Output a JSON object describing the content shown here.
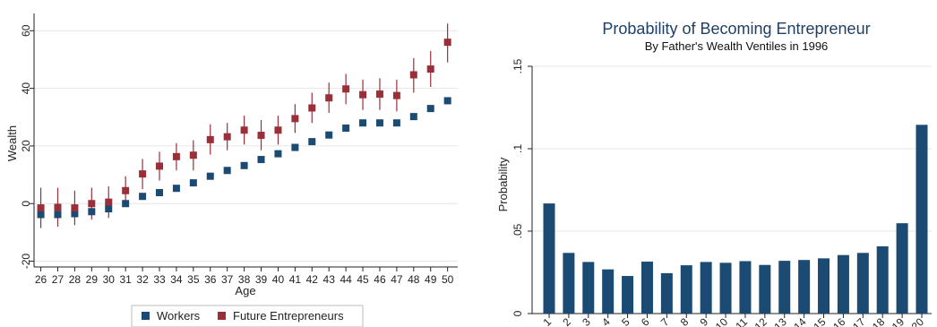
{
  "colors": {
    "workers": "#1b4a73",
    "entrepreneurs": "#9a2f3a",
    "bar": "#1b4a73",
    "grid": "#e6e6e6",
    "axis": "#222222"
  },
  "chart_data": [
    {
      "type": "scatter",
      "title": "",
      "xlabel": "Age",
      "ylabel": "Wealth",
      "xlim": [
        25.6,
        50.6
      ],
      "ylim": [
        -22,
        66
      ],
      "yticks": [
        -20,
        0,
        20,
        40,
        60
      ],
      "xticks": [
        26,
        27,
        28,
        29,
        30,
        31,
        32,
        33,
        34,
        35,
        36,
        37,
        38,
        39,
        40,
        41,
        42,
        43,
        44,
        45,
        46,
        47,
        48,
        49,
        50
      ],
      "grid": true,
      "legend_position": "bottom",
      "series": [
        {
          "name": "Workers",
          "marker": "square",
          "x": [
            26,
            27,
            28,
            29,
            30,
            31,
            32,
            33,
            34,
            35,
            36,
            37,
            38,
            39,
            40,
            41,
            42,
            43,
            44,
            45,
            46,
            47,
            48,
            49,
            50
          ],
          "y": [
            -3.8,
            -3.8,
            -3.5,
            -2.8,
            -1.8,
            0,
            2.5,
            3.8,
            5.3,
            7.2,
            9.5,
            11.5,
            13.2,
            15.3,
            17.3,
            19.5,
            21.5,
            23.8,
            26.2,
            28.0,
            28.0,
            28.0,
            30.2,
            33.0,
            35.7
          ]
        },
        {
          "name": "Future Entrepreneurs",
          "marker": "square",
          "x": [
            26,
            27,
            28,
            29,
            30,
            31,
            32,
            33,
            34,
            35,
            36,
            37,
            38,
            39,
            40,
            41,
            42,
            43,
            44,
            45,
            46,
            47,
            48,
            49,
            50
          ],
          "y": [
            -1.5,
            -1.3,
            -1.5,
            0.0,
            0.5,
            4.5,
            10.3,
            13.0,
            16.3,
            16.8,
            22.2,
            23.2,
            25.5,
            23.7,
            25.5,
            29.5,
            33.2,
            36.7,
            39.8,
            37.8,
            38.0,
            37.5,
            44.7,
            46.7,
            56.0
          ],
          "err_low": [
            -8.5,
            -8.0,
            -7.5,
            -5.5,
            -5.0,
            -0.5,
            5.0,
            8.0,
            11.5,
            11.5,
            17.0,
            18.5,
            20.5,
            18.5,
            20.5,
            24.5,
            28.0,
            31.5,
            34.5,
            32.5,
            32.5,
            32.0,
            38.5,
            40.5,
            49.0
          ],
          "err_high": [
            5.5,
            5.5,
            4.5,
            5.5,
            6.0,
            9.5,
            15.5,
            18.0,
            21.0,
            22.0,
            27.5,
            28.0,
            30.5,
            29.0,
            30.5,
            34.5,
            38.5,
            42.0,
            45.0,
            43.0,
            43.5,
            43.0,
            50.5,
            53.0,
            62.5
          ]
        }
      ]
    },
    {
      "type": "bar",
      "title": "Probability of Becoming Entrepreneur",
      "subtitle": "By Father's Wealth Ventiles in 1996",
      "xlabel": "",
      "ylabel": "Probability",
      "ylim": [
        0,
        0.15
      ],
      "yticks": [
        0,
        0.05,
        0.1,
        0.15
      ],
      "ytick_labels": [
        "0",
        ".05",
        ".1",
        ".15"
      ],
      "grid": true,
      "categories": [
        "1",
        "2",
        "3",
        "4",
        "5",
        "6",
        "7",
        "8",
        "9",
        "10",
        "11",
        "12",
        "13",
        "14",
        "15",
        "16",
        "17",
        "18",
        "19",
        "20"
      ],
      "values": [
        0.0668,
        0.0368,
        0.0313,
        0.0268,
        0.0228,
        0.0315,
        0.0245,
        0.0293,
        0.0313,
        0.0308,
        0.0318,
        0.0295,
        0.032,
        0.0325,
        0.0335,
        0.0355,
        0.0368,
        0.0408,
        0.0548,
        0.1145
      ]
    }
  ]
}
